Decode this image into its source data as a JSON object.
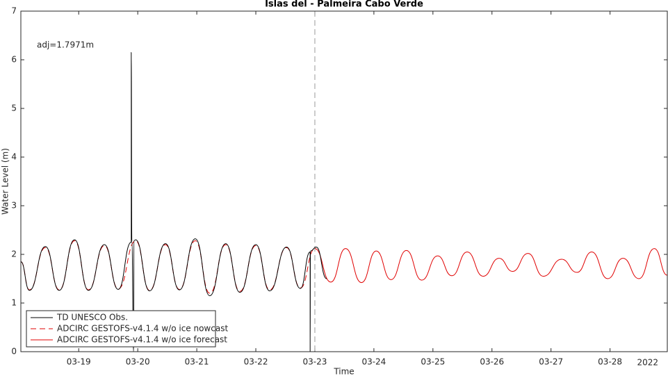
{
  "chart_data": {
    "type": "line",
    "title": "Islas del - Palmeira Cabo Verde",
    "xlabel": "Time",
    "ylabel": "Water Level (m)",
    "x_corner_label": "2022",
    "annotation": "adj=1.7971m",
    "xlim": [
      18.02,
      28.97
    ],
    "ylim": [
      0,
      7
    ],
    "yticks": [
      0,
      1,
      2,
      3,
      4,
      5,
      6,
      7
    ],
    "xticks": [
      {
        "value": 19,
        "label": "03-19"
      },
      {
        "value": 20,
        "label": "03-20"
      },
      {
        "value": 21,
        "label": "03-21"
      },
      {
        "value": 22,
        "label": "03-22"
      },
      {
        "value": 23,
        "label": "03-23"
      },
      {
        "value": 24,
        "label": "03-24"
      },
      {
        "value": 25,
        "label": "03-25"
      },
      {
        "value": 26,
        "label": "03-26"
      },
      {
        "value": 27,
        "label": "03-27"
      },
      {
        "value": 28,
        "label": "03-28"
      }
    ],
    "grid": false,
    "legend": "lower left",
    "vlines": [
      {
        "x": 23.0,
        "color": "#999999",
        "dash": true
      }
    ],
    "series": [
      {
        "name": "ADCIRC GESTOFS-v4.1.4 w/o ice nowcast",
        "color": "#e00000",
        "dash": true,
        "x": [
          18.02,
          18.165,
          18.435,
          18.67,
          18.93,
          19.165,
          19.435,
          19.67,
          19.965,
          20.2,
          20.47,
          20.705,
          20.975,
          21.22,
          21.49,
          21.73,
          22.0,
          22.235,
          22.52,
          22.755,
          23.0
        ],
        "values": [
          1.85,
          1.27,
          2.14,
          1.27,
          2.28,
          1.27,
          2.18,
          1.29,
          2.28,
          1.26,
          2.2,
          1.28,
          2.28,
          1.2,
          2.2,
          1.24,
          2.18,
          1.27,
          2.14,
          1.31,
          2.12
        ]
      },
      {
        "name": "ADCIRC GESTOFS-v4.1.4 w/o ice forecast",
        "color": "#e00000",
        "dash": false,
        "x": [
          23.0,
          23.27,
          23.52,
          23.79,
          24.04,
          24.29,
          24.55,
          24.81,
          25.08,
          25.32,
          25.58,
          25.85,
          26.12,
          26.35,
          26.61,
          26.87,
          27.18,
          27.44,
          27.69,
          27.96,
          28.22,
          28.49,
          28.75,
          28.97
        ],
        "values": [
          2.12,
          1.43,
          2.12,
          1.42,
          2.07,
          1.48,
          2.08,
          1.47,
          1.97,
          1.56,
          2.05,
          1.55,
          1.92,
          1.65,
          2.02,
          1.55,
          1.9,
          1.63,
          2.05,
          1.5,
          1.92,
          1.5,
          2.12,
          1.57
        ]
      },
      {
        "name": "TD UNESCO Obs.",
        "color": "#000000",
        "dash": false,
        "x": [
          18.02,
          18.165,
          18.435,
          18.67,
          18.93,
          19.165,
          19.435,
          19.67,
          19.89,
          19.89,
          19.9,
          19.93,
          19.935,
          19.965,
          20.2,
          20.47,
          20.705,
          20.975,
          21.22,
          21.49,
          21.73,
          22.0,
          22.235,
          22.52,
          22.755,
          22.92,
          22.92,
          22.925,
          23.025,
          23.2
        ],
        "values": [
          1.85,
          1.26,
          2.16,
          1.26,
          2.3,
          1.26,
          2.2,
          1.28,
          2.25,
          6.15,
          2.27,
          0,
          2.28,
          2.3,
          1.25,
          2.22,
          1.27,
          2.32,
          1.15,
          2.22,
          1.22,
          2.2,
          1.25,
          2.15,
          1.3,
          2.05,
          0,
          2.07,
          2.15,
          1.5
        ]
      }
    ]
  }
}
